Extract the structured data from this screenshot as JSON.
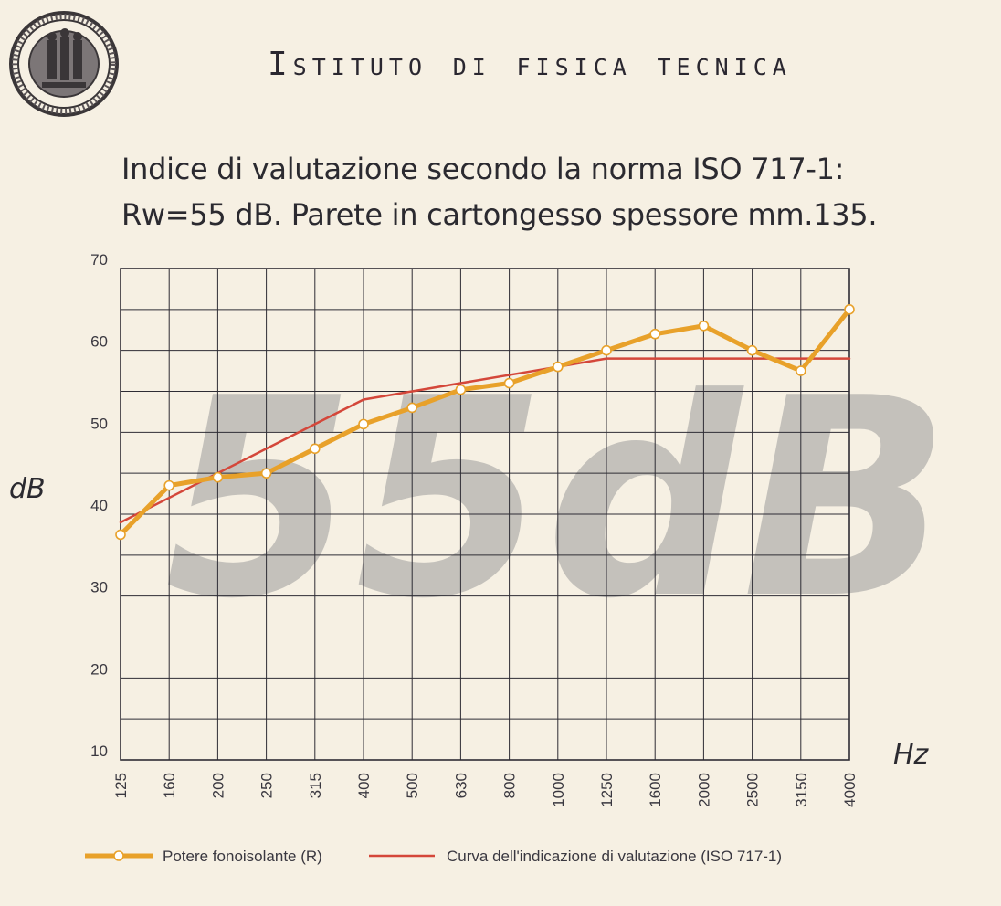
{
  "header": {
    "institute": "Istituto di fisica tecnica",
    "seal_icon": "university-seal-icon"
  },
  "subtitle": {
    "line1": "Indice di valutazione secondo la norma ISO 717-1:",
    "line2": "Rw=55 dB. Parete in cartongesso spessore mm.135."
  },
  "chart_data": {
    "type": "line",
    "categories": [
      "125",
      "160",
      "200",
      "250",
      "315",
      "400",
      "500",
      "630",
      "800",
      "1000",
      "1250",
      "1600",
      "2000",
      "2500",
      "3150",
      "4000"
    ],
    "series": [
      {
        "name": "Potere fonoisolante (R)",
        "color": "#e8a12a",
        "markers": true,
        "values": [
          37.5,
          43.5,
          44.5,
          45,
          48,
          51,
          53,
          55.2,
          56,
          58,
          60,
          62,
          63,
          60,
          57.5,
          65
        ]
      },
      {
        "name": "Curva dell'indicazione di valutazione (ISO 717-1)",
        "color": "#d4473a",
        "markers": false,
        "values": [
          39,
          42,
          45,
          48,
          51,
          54,
          55,
          56,
          57,
          58,
          59,
          59,
          59,
          59,
          59,
          59
        ]
      }
    ],
    "xlabel": "Hz",
    "ylabel": "dB",
    "ylim": [
      10,
      70
    ],
    "yticks": [
      10,
      20,
      30,
      40,
      50,
      60,
      70
    ],
    "grid": true,
    "legend_position": "bottom",
    "watermark": "55dB"
  }
}
